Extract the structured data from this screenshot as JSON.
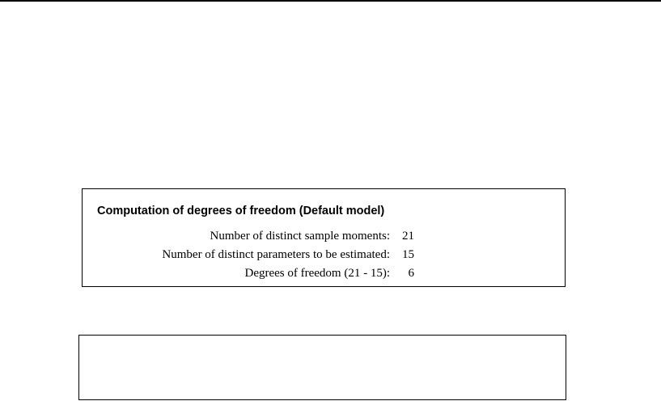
{
  "table": {
    "title": "Computation of degrees of freedom (Default model)",
    "rows": [
      {
        "label": "Number of distinct sample moments:",
        "value": "21"
      },
      {
        "label": "Number of distinct parameters to be estimated:",
        "value": "15"
      },
      {
        "label": "Degrees of freedom (21 - 15):",
        "value": "6"
      }
    ]
  }
}
